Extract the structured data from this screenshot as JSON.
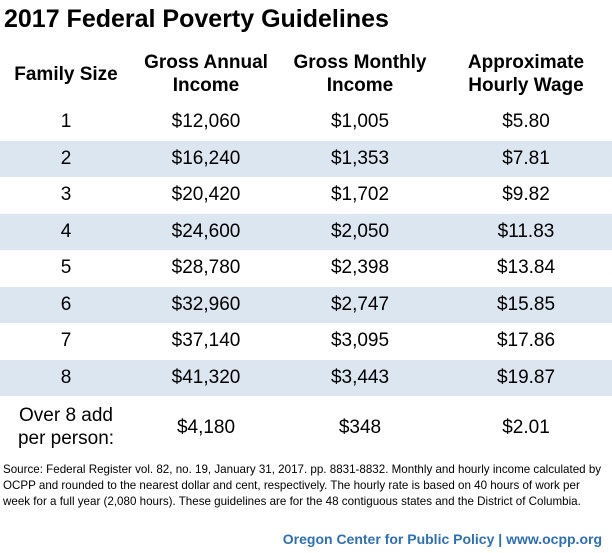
{
  "title": "2017 Federal Poverty Guidelines",
  "columns": {
    "family_size": "Family Size",
    "annual_line1": "Gross Annual",
    "annual_line2": "Income",
    "monthly_line1": "Gross Monthly",
    "monthly_line2": "Income",
    "hourly_line1": "Approximate",
    "hourly_line2": "Hourly Wage"
  },
  "rows": [
    {
      "size": "1",
      "annual": "$12,060",
      "monthly": "$1,005",
      "hourly": "$5.80"
    },
    {
      "size": "2",
      "annual": "$16,240",
      "monthly": "$1,353",
      "hourly": "$7.81"
    },
    {
      "size": "3",
      "annual": "$20,420",
      "monthly": "$1,702",
      "hourly": "$9.82"
    },
    {
      "size": "4",
      "annual": "$24,600",
      "monthly": "$2,050",
      "hourly": "$11.83"
    },
    {
      "size": "5",
      "annual": "$28,780",
      "monthly": "$2,398",
      "hourly": "$13.84"
    },
    {
      "size": "6",
      "annual": "$32,960",
      "monthly": "$2,747",
      "hourly": "$15.85"
    },
    {
      "size": "7",
      "annual": "$37,140",
      "monthly": "$3,095",
      "hourly": "$17.86"
    },
    {
      "size": "8",
      "annual": "$41,320",
      "monthly": "$3,443",
      "hourly": "$19.87"
    }
  ],
  "extra": {
    "label_line1": "Over 8 add",
    "label_line2": "per person:",
    "annual": "$4,180",
    "monthly": "$348",
    "hourly": "$2.01"
  },
  "source": "Source: Federal Register vol. 82, no. 19, January 31, 2017. pp. 8831-8832. Monthly and hourly income calculated by OCPP and rounded to the nearest dollar and cent, respectively. The hourly rate is based on 40 hours of work per week for a full year (2,080 hours). These guidelines are for the 48 contiguous states and the District of Columbia.",
  "footer": "Oregon Center for Public Policy | www.ocpp.org",
  "colors": {
    "stripe": "#dce6f0",
    "footer": "#2e6fb5"
  }
}
